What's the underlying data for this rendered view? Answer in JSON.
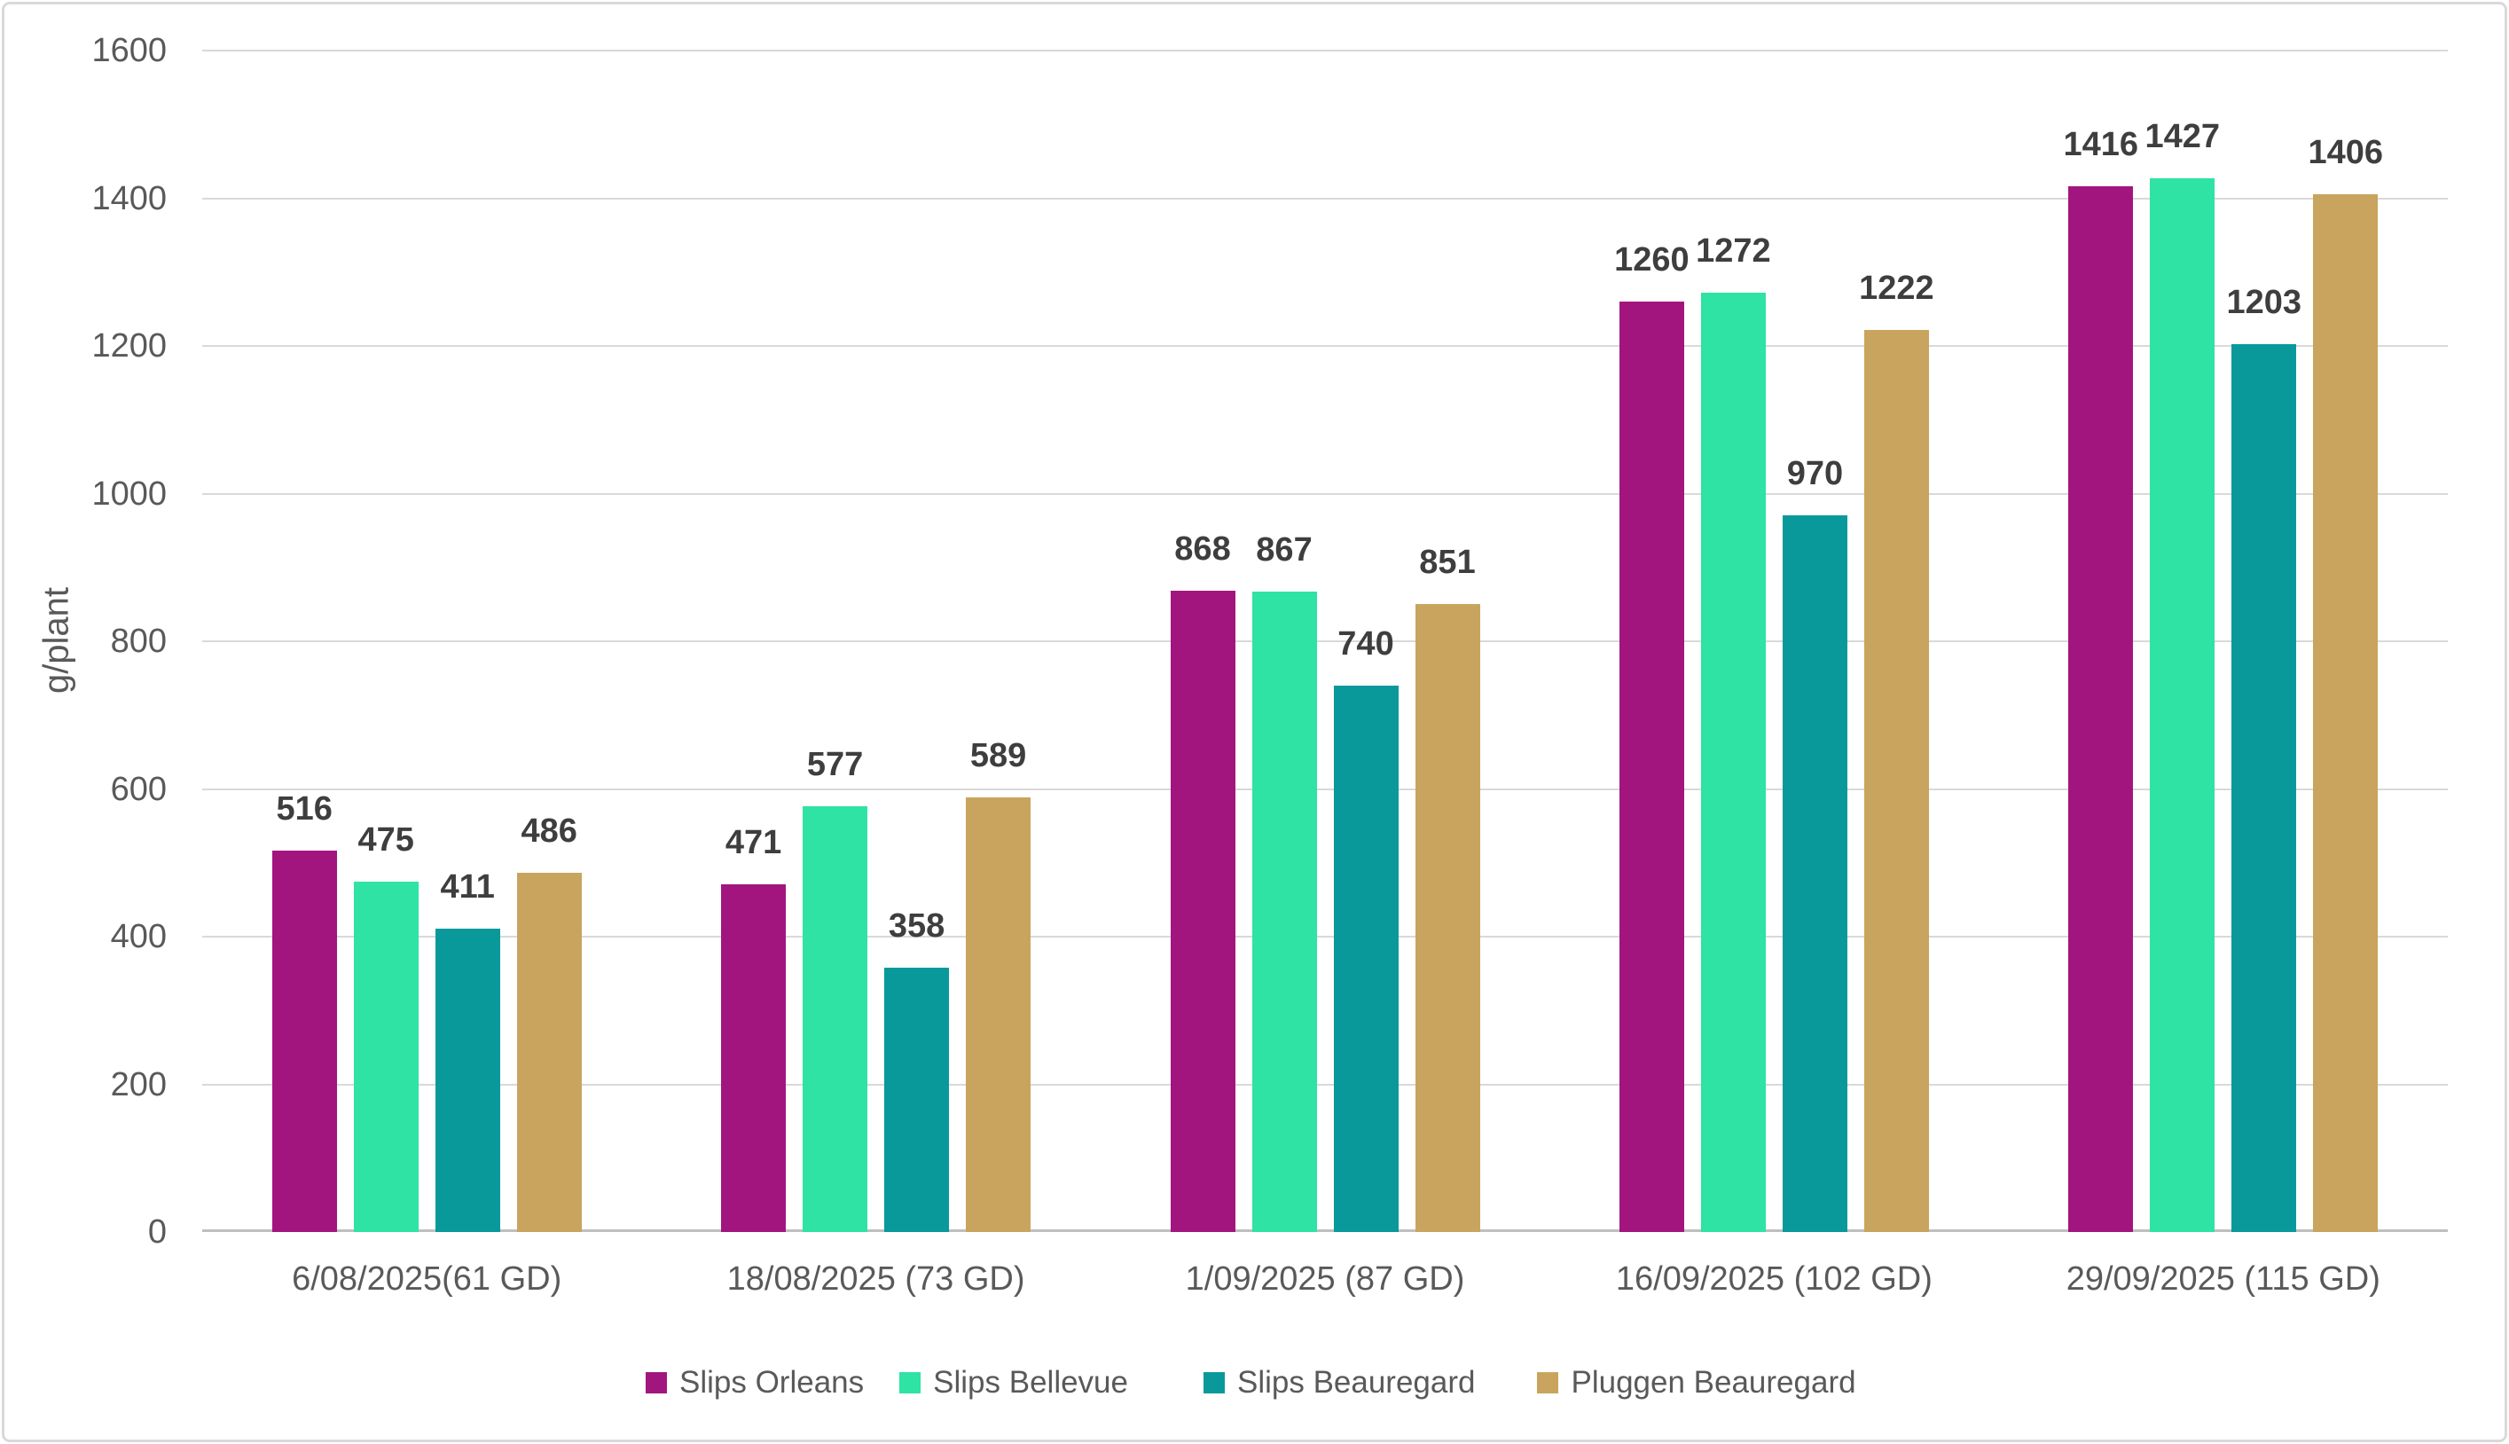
{
  "chart_data": {
    "type": "bar",
    "title": "",
    "ylabel": "g/plant",
    "ylim": [
      0,
      1600
    ],
    "ytick_step": 200,
    "yticks": [
      "0",
      "200",
      "400",
      "600",
      "800",
      "1000",
      "1200",
      "1400",
      "1600"
    ],
    "grid": true,
    "legend_position": "bottom",
    "categories": [
      "6/08/2025(61 GD)",
      "18/08/2025 (73 GD)",
      "1/09/2025 (87 GD)",
      "16/09/2025 (102 GD)",
      "29/09/2025 (115 GD)"
    ],
    "series": [
      {
        "name": "Slips Orleans",
        "color": "#A2157F",
        "values": [
          516,
          471,
          868,
          1260,
          1416
        ]
      },
      {
        "name": "Slips Bellevue",
        "color": "#2EE3A3",
        "values": [
          475,
          577,
          867,
          1272,
          1427
        ]
      },
      {
        "name": "Slips Beauregard",
        "color": "#09999B",
        "values": [
          411,
          358,
          740,
          970,
          1203
        ]
      },
      {
        "name": "Pluggen Beauregard",
        "color": "#C9A45E",
        "values": [
          486,
          589,
          851,
          1222,
          1406
        ]
      }
    ]
  }
}
